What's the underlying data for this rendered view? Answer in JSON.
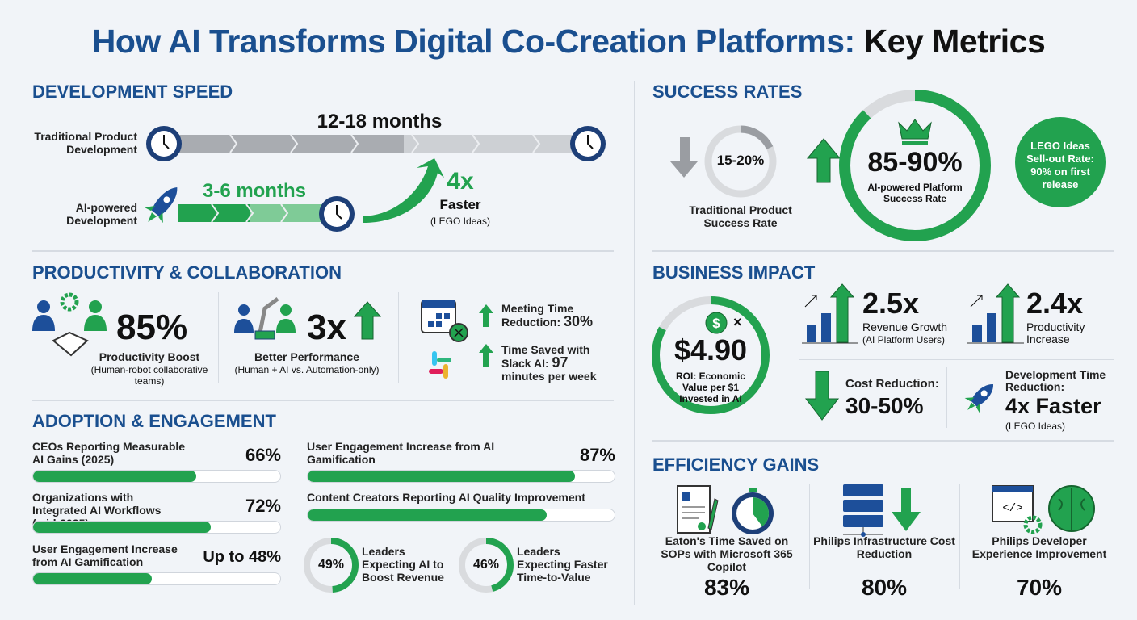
{
  "title": {
    "main": "How AI Transforms Digital Co-Creation Platforms:",
    "accent": "Key Metrics"
  },
  "colors": {
    "blue": "#1a4f8f",
    "green": "#22a24f",
    "gray": "#c9ccd1"
  },
  "development_speed": {
    "heading": "DEVELOPMENT SPEED",
    "traditional_label": "Traditional Product Development",
    "traditional_duration": "12-18 months",
    "ai_label": "AI-powered Development",
    "ai_duration": "3-6 months",
    "speedup": "4x",
    "speedup_label": "Faster",
    "speedup_source": "(LEGO Ideas)",
    "icons": [
      "clock-icon",
      "rocket-icon",
      "curved-arrow-icon"
    ]
  },
  "success_rates": {
    "heading": "SUCCESS RATES",
    "traditional_value": "15-20%",
    "traditional_fill": 0.18,
    "traditional_label": "Traditional Product Success Rate",
    "ai_value": "85-90%",
    "ai_fill": 0.88,
    "ai_label": "AI-powered Platform Success Rate",
    "callout": "LEGO Ideas Sell-out Rate: 90% on first release",
    "icons": [
      "down-arrow-icon",
      "up-arrow-icon",
      "crown-icon"
    ]
  },
  "productivity": {
    "heading": "PRODUCTIVITY & COLLABORATION",
    "boost_value": "85%",
    "boost_label": "Productivity Boost",
    "boost_sub": "(Human-robot collaborative teams)",
    "perf_value": "3x",
    "perf_label": "Better Performance",
    "perf_sub": "(Human + AI vs. Automation-only)",
    "meeting_label": "Meeting Time Reduction:",
    "meeting_value": "30%",
    "slack_label": "Time Saved with Slack AI:",
    "slack_value": "97",
    "slack_unit": "minutes per week"
  },
  "business_impact": {
    "heading": "BUSINESS IMPACT",
    "roi_value": "$4.90",
    "roi_fill": 0.83,
    "roi_multiplier": "×",
    "roi_label": "ROI: Economic Value per $1 Invested in AI",
    "revenue_value": "2.5x",
    "revenue_label": "Revenue Growth",
    "revenue_sub": "(AI Platform Users)",
    "productivity_value": "2.4x",
    "productivity_label": "Productivity Increase",
    "cost_label": "Cost Reduction:",
    "cost_value": "30-50%",
    "devtime_label": "Development Time Reduction:",
    "devtime_value": "4x Faster",
    "devtime_sub": "(LEGO Ideas)"
  },
  "adoption": {
    "heading": "ADOPTION & ENGAGEMENT",
    "bars": [
      {
        "label": "CEOs Reporting Measurable AI Gains (2025)",
        "value": "66%",
        "fill": 0.66
      },
      {
        "label": "Organizations with Integrated AI Workflows (mid-2025)",
        "value": "72%",
        "fill": 0.72
      },
      {
        "label": "User Engagement Increase from AI Gamification",
        "value": "Up to 48%",
        "fill": 0.48
      },
      {
        "label": "User Engagement Increase from AI Gamification",
        "value": "87%",
        "fill": 0.87
      },
      {
        "label": "Content Creators Reporting AI Quality Improvement",
        "fill": 0.78
      }
    ],
    "donuts": [
      {
        "value": "49%",
        "fill": 0.49,
        "label": "Leaders Expecting AI to Boost Revenue"
      },
      {
        "value": "46%",
        "fill": 0.46,
        "label": "Leaders Expecting Faster Time-to-Value"
      }
    ]
  },
  "efficiency": {
    "heading": "EFFICIENCY GAINS",
    "items": [
      {
        "label": "Eaton's Time Saved on SOPs with Microsoft 365 Copilot",
        "value": "83%"
      },
      {
        "label": "Philips Infrastructure Cost Reduction",
        "value": "80%"
      },
      {
        "label": "Philips Developer Experience Improvement",
        "value": "70%"
      }
    ]
  }
}
